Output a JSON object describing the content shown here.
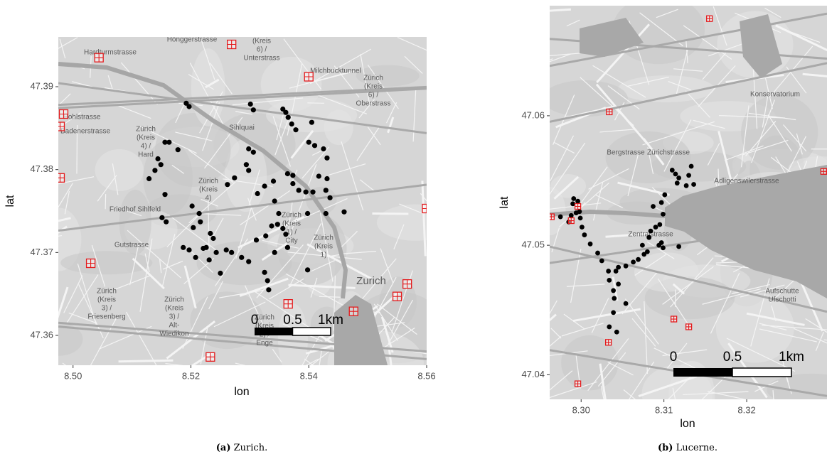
{
  "chart_data": [
    {
      "type": "scatter",
      "x_label": "lon",
      "y_label": "lat",
      "caption": {
        "label": "(a)",
        "text": "Zurich."
      },
      "xlim": [
        8.4975,
        8.56
      ],
      "ylim": [
        47.3564,
        47.396
      ],
      "xticks": [
        {
          "value": 8.5,
          "label": "8.50"
        },
        8.52,
        8.54,
        8.56
      ],
      "yticks": [
        47.36,
        47.37,
        47.38,
        47.39
      ],
      "scale_bar": [
        "0",
        "0.5",
        "1km"
      ],
      "map_labels": [
        [
          "Hardturmstrasse"
        ],
        [
          "Hönggerstrasse"
        ],
        [
          "(Kreis",
          "6) /",
          "Unterstrass"
        ],
        [
          "Zürich",
          "(Kreis",
          "6) /",
          "Oberstrass"
        ],
        [
          "Zürich",
          "(Kreis",
          "4) /",
          "Hard"
        ],
        [
          "Zürich",
          "(Kreis",
          "4)"
        ],
        [
          "Friedhof Sihlfeld"
        ],
        [
          "Zürich",
          "(Kreis",
          "1) /",
          "City"
        ],
        [
          "Zürich",
          "(Kreis",
          "1)"
        ],
        [
          "Zurich"
        ],
        [
          "Zürich",
          "(Kreis",
          "3) /",
          "Friesenberg"
        ],
        [
          "Zürich",
          "(Kreis",
          "3) /",
          "Alt-",
          "Wiedikon"
        ],
        [
          "Zürich",
          "(Kreis",
          "2) /",
          "Enge"
        ],
        [
          "Sihlquai"
        ],
        [
          "Hohlstrasse"
        ],
        [
          "Badenerstrasse"
        ],
        [
          "Gutstrasse"
        ],
        [
          "Milchbucktunnel"
        ]
      ],
      "series": [
        {
          "color": "#000000",
          "marker": "dot",
          "x": [
            8.5192,
            8.5197,
            8.5301,
            8.5306,
            8.5356,
            8.5361,
            8.5365,
            8.5371,
            8.5405,
            8.5378,
            8.54,
            8.541,
            8.5425,
            8.5431,
            8.5156,
            8.5163,
            8.5178,
            8.5144,
            8.5149,
            8.5139,
            8.5129,
            8.5156,
            8.5298,
            8.5306,
            8.5294,
            8.5298,
            8.5262,
            8.5274,
            8.5313,
            8.5325,
            8.534,
            8.5342,
            8.5364,
            8.5373,
            8.5373,
            8.5383,
            8.5417,
            8.5431,
            8.5429,
            8.5436,
            8.5395,
            8.5407,
            8.5398,
            8.5429,
            8.546,
            8.5349,
            8.5202,
            8.5214,
            8.5216,
            8.5204,
            8.5151,
            8.5158,
            8.5233,
            8.5238,
            8.5226,
            8.5187,
            8.5197,
            8.5208,
            8.526,
            8.5269,
            8.5286,
            8.5298,
            8.5311,
            8.5327,
            8.5337,
            8.5347,
            8.5356,
            8.5361,
            8.5342,
            8.5364,
            8.5325,
            8.533,
            8.5332,
            8.5398,
            8.525,
            8.5243,
            8.5221,
            8.5231
          ],
          "values": [
            47.388,
            47.3876,
            47.3879,
            47.3872,
            47.3873,
            47.3869,
            47.3863,
            47.3855,
            47.3857,
            47.3848,
            47.3833,
            47.3829,
            47.3825,
            47.3814,
            47.3833,
            47.3833,
            47.3824,
            47.3813,
            47.3806,
            47.3799,
            47.3789,
            47.377,
            47.3825,
            47.3821,
            47.3806,
            47.3799,
            47.3782,
            47.379,
            47.3771,
            47.378,
            47.3786,
            47.3762,
            47.3795,
            47.3793,
            47.3783,
            47.3775,
            47.3792,
            47.3789,
            47.3775,
            47.3766,
            47.3773,
            47.3773,
            47.3747,
            47.3747,
            47.3749,
            47.3747,
            47.3756,
            47.3747,
            47.3737,
            47.373,
            47.3742,
            47.3737,
            47.3723,
            47.3717,
            47.3706,
            47.3706,
            47.3703,
            47.3694,
            47.3703,
            47.37,
            47.3694,
            47.3689,
            47.3715,
            47.372,
            47.3732,
            47.3734,
            47.3729,
            47.3722,
            47.37,
            47.3706,
            47.3676,
            47.3666,
            47.3655,
            47.3679,
            47.3675,
            47.37,
            47.3705,
            47.3691
          ]
        },
        {
          "color": "#e41a1c",
          "marker": "station",
          "x": [
            8.5044,
            8.5269,
            8.54,
            8.4984,
            8.4978,
            8.4978,
            8.56,
            8.503,
            8.555,
            8.5567,
            8.5476,
            8.5365,
            8.5233
          ],
          "values": [
            47.3935,
            47.3951,
            47.3912,
            47.3867,
            47.3852,
            47.379,
            47.3753,
            47.3687,
            47.3647,
            47.3662,
            47.3629,
            47.3638,
            47.3574
          ]
        }
      ]
    },
    {
      "type": "scatter",
      "x_label": "lon",
      "y_label": "lat",
      "caption": {
        "label": "(b)",
        "text": "Lucerne."
      },
      "xlim": [
        8.2962,
        8.3297
      ],
      "ylim": [
        47.0381,
        47.0685
      ],
      "xticks": [
        {
          "value": 8.3,
          "label": "8.30"
        },
        8.31,
        8.32
      ],
      "yticks": [
        47.04,
        47.05,
        47.06
      ],
      "scale_bar": [
        "0",
        "0.5",
        "1km"
      ],
      "map_labels": [
        [
          "Zürichstrasse"
        ],
        [
          "Konservatorium"
        ],
        [
          "Adligenswilerstrasse"
        ],
        [
          "Aufschutte",
          "Ufschotti"
        ],
        [
          "Zentralstrasse"
        ],
        [
          "Bergstrasse"
        ]
      ],
      "series": [
        {
          "color": "#000000",
          "marker": "dot",
          "x": [
            8.2975,
            8.2988,
            8.2985,
            8.2994,
            8.299,
            8.2991,
            8.2996,
            8.2998,
            8.2999,
            8.3001,
            8.3004,
            8.3011,
            8.302,
            8.3025,
            8.3033,
            8.3042,
            8.3045,
            8.3054,
            8.3063,
            8.3069,
            8.3076,
            8.308,
            8.3074,
            8.3082,
            8.3084,
            8.309,
            8.3095,
            8.3094,
            8.3097,
            8.3099,
            8.3118,
            8.3099,
            8.3097,
            8.3101,
            8.311,
            8.3114,
            8.3118,
            8.3127,
            8.3136,
            8.313,
            8.3133,
            8.3116,
            8.3087,
            8.3034,
            8.3039,
            8.304,
            8.3054,
            8.3039,
            8.3034,
            8.3043,
            8.3045
          ],
          "values": [
            47.0522,
            47.0523,
            47.0518,
            47.0525,
            47.0532,
            47.0536,
            47.0534,
            47.0526,
            47.0521,
            47.0514,
            47.0508,
            47.0501,
            47.0494,
            47.0488,
            47.048,
            47.048,
            47.0483,
            47.0484,
            47.0487,
            47.0489,
            47.0493,
            47.0495,
            47.05,
            47.0506,
            47.0511,
            47.0514,
            47.0516,
            47.05,
            47.0502,
            47.0498,
            47.0499,
            47.0524,
            47.0533,
            47.0539,
            47.0558,
            47.0555,
            47.0552,
            47.0546,
            47.0547,
            47.0554,
            47.0561,
            47.0548,
            47.053,
            47.0473,
            47.0465,
            47.0459,
            47.0455,
            47.0448,
            47.0437,
            47.0433,
            47.047
          ]
        },
        {
          "color": "#e41a1c",
          "marker": "station",
          "x": [
            8.3155,
            8.3034,
            8.2964,
            8.2988,
            8.2996,
            8.3112,
            8.313,
            8.3033,
            8.2996,
            8.3293
          ],
          "values": [
            47.0675,
            47.0603,
            47.0522,
            47.0519,
            47.053,
            47.0443,
            47.0437,
            47.0425,
            47.0393,
            47.0557
          ]
        }
      ]
    }
  ]
}
